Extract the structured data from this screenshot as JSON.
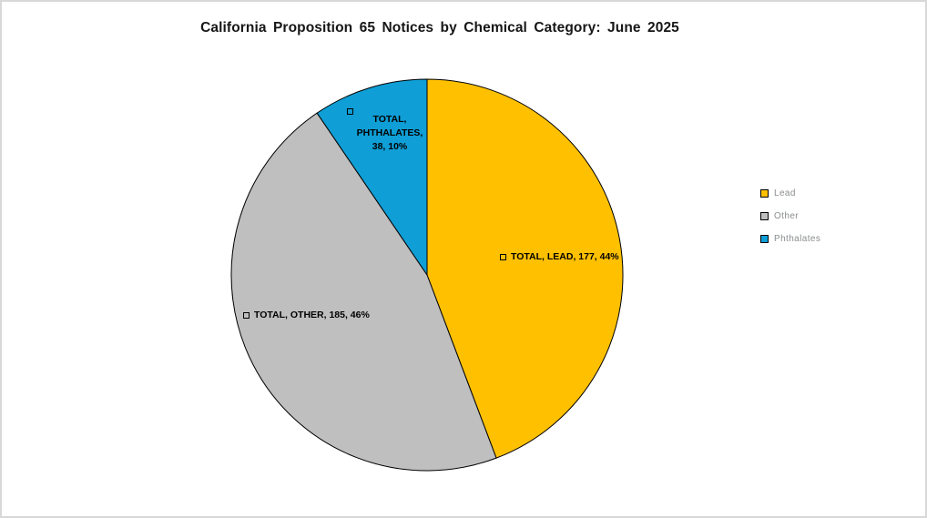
{
  "chart_data": {
    "type": "pie",
    "title": "California Proposition 65 Notices by Chemical Category: June 2025",
    "series_name": "TOTAL",
    "categories": [
      "Lead",
      "Other",
      "Phthalates"
    ],
    "values": [
      177,
      185,
      38
    ],
    "percentages": [
      "44%",
      "46%",
      "10%"
    ],
    "colors": [
      "#FFC000",
      "#BFBFBF",
      "#0F9ED5"
    ],
    "slice_border_color": "#000000",
    "start_angle_deg": 0,
    "direction": "clockwise",
    "legend_position": "right",
    "grid": "off",
    "labels": [
      {
        "lines": [
          "TOTAL, LEAD, 177, 44%"
        ]
      },
      {
        "lines": [
          "TOTAL, OTHER, 185, 46%"
        ]
      },
      {
        "lines": [
          "TOTAL,",
          "PHTHALATES,",
          "38, 10%"
        ]
      }
    ],
    "legend": [
      {
        "label": "Lead"
      },
      {
        "label": "Other"
      },
      {
        "label": "Phthalates"
      }
    ]
  }
}
